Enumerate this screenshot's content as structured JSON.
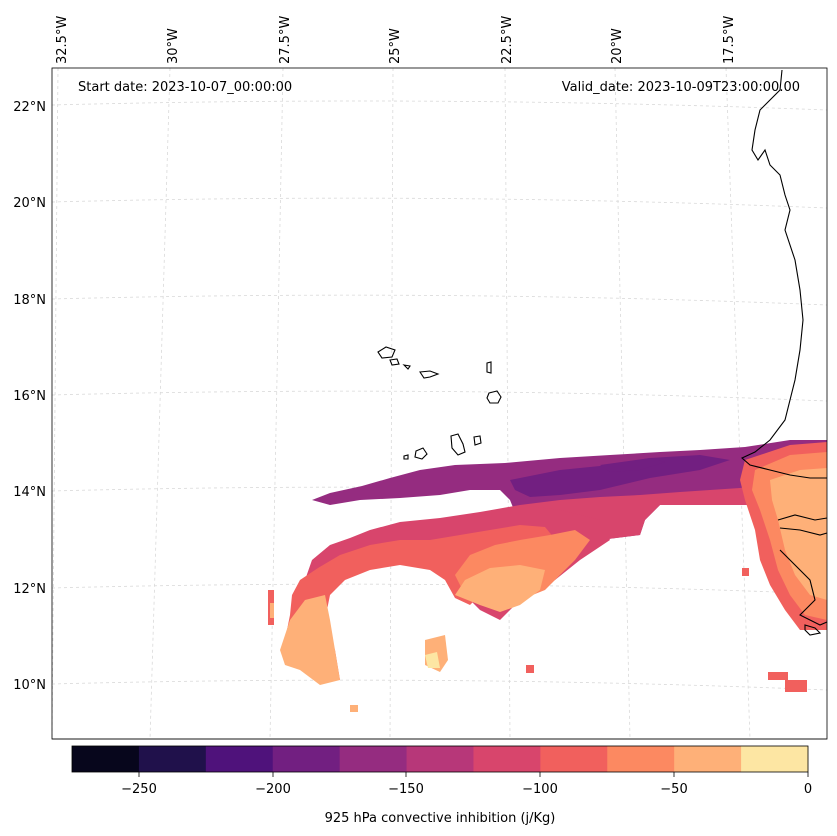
{
  "map": {
    "start_date_label": "Start date: 2023-10-07_00:00:00",
    "valid_date_label": "Valid_date: 2023-10-09T23:00:00.00",
    "lon_ticks": [
      "32.5°W",
      "30°W",
      "27.5°W",
      "25°W",
      "22.5°W",
      "20°W",
      "17.5°W"
    ],
    "lat_ticks": [
      "22°N",
      "20°N",
      "18°N",
      "16°N",
      "14°N",
      "12°N",
      "10°N"
    ],
    "gridlines": true
  },
  "colorbar": {
    "label": "925 hPa convective inhibition (j/Kg)",
    "tick_labels": [
      "−250",
      "−200",
      "−150",
      "−100",
      "−50",
      "0"
    ],
    "levels": [
      -275,
      -250,
      -225,
      -200,
      -175,
      -150,
      -125,
      -100,
      -75,
      -50,
      -25,
      0
    ],
    "colors": [
      "#07061c",
      "#20114b",
      "#4f127b",
      "#721f81",
      "#952c80",
      "#b73779",
      "#d8456c",
      "#f1605d",
      "#fc8961",
      "#feb078",
      "#fde6a3"
    ]
  },
  "colors": {
    "coastline": "#000000",
    "grid": "#cccccc"
  }
}
